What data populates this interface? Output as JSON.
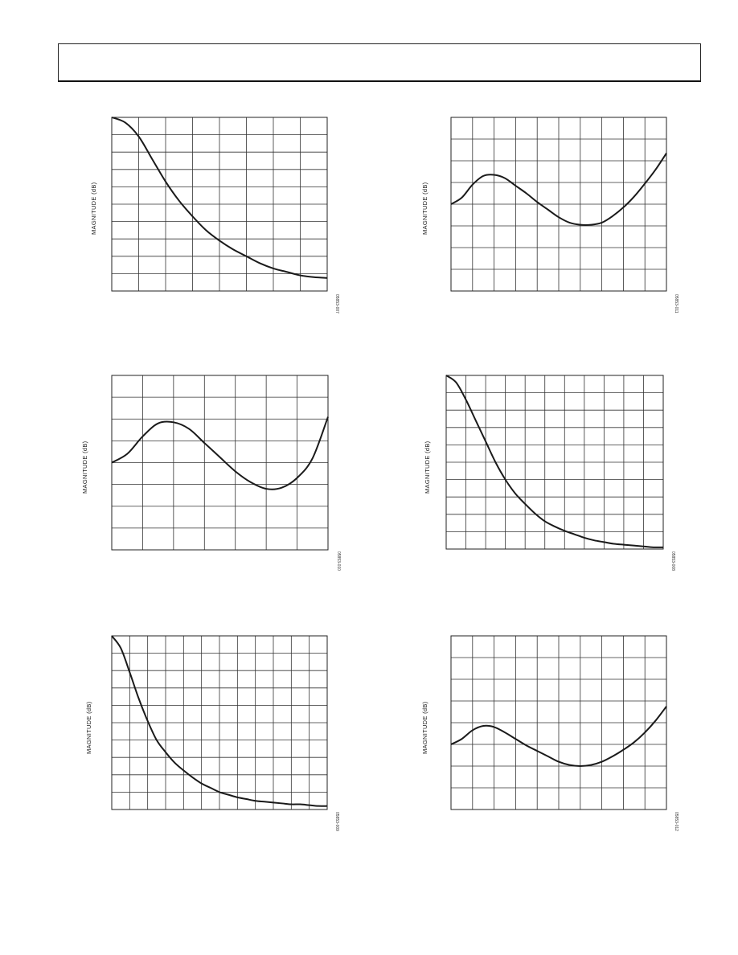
{
  "chart_data": [
    {
      "type": "line",
      "ylabel": "MAGNITUDE (dB)",
      "fig_id": "05853-007",
      "gridX": 8,
      "gridY": 10,
      "ylim": [
        0,
        10
      ],
      "x": [
        0,
        0.5,
        1,
        1.5,
        2,
        2.5,
        3,
        3.5,
        4,
        4.5,
        5,
        5.5,
        6,
        6.5,
        7,
        7.5,
        8
      ],
      "values": [
        10,
        9.7,
        8.9,
        7.6,
        6.3,
        5.2,
        4.3,
        3.5,
        2.9,
        2.4,
        2.0,
        1.6,
        1.3,
        1.1,
        0.9,
        0.8,
        0.75
      ]
    },
    {
      "type": "line",
      "ylabel": "MAGNITUDE (dB)",
      "fig_id": "05853-011",
      "gridX": 10,
      "gridY": 8,
      "ylim": [
        0,
        8
      ],
      "x": [
        0,
        0.5,
        1,
        1.5,
        2,
        2.5,
        3,
        3.5,
        4,
        4.5,
        5,
        5.5,
        6,
        6.5,
        7,
        7.5,
        8,
        8.5,
        9,
        9.5,
        10
      ],
      "values": [
        4.0,
        4.3,
        4.9,
        5.3,
        5.35,
        5.2,
        4.85,
        4.5,
        4.1,
        3.75,
        3.4,
        3.15,
        3.05,
        3.05,
        3.15,
        3.45,
        3.85,
        4.35,
        4.95,
        5.6,
        6.35
      ]
    },
    {
      "type": "line",
      "ylabel": "MAGNITUDE (dB)",
      "fig_id": "05853-010",
      "gridX": 7,
      "gridY": 8,
      "ylim": [
        0,
        8
      ],
      "x": [
        0,
        0.5,
        1,
        1.5,
        2,
        2.5,
        3,
        3.5,
        4,
        4.5,
        5,
        5.5,
        6,
        6.5,
        7
      ],
      "values": [
        4.0,
        4.4,
        5.2,
        5.8,
        5.85,
        5.55,
        4.9,
        4.25,
        3.6,
        3.1,
        2.8,
        2.85,
        3.3,
        4.2,
        6.1
      ]
    },
    {
      "type": "line",
      "ylabel": "MAGNITUDE (dB)",
      "fig_id": "05853-008",
      "gridX": 11,
      "gridY": 10,
      "ylim": [
        0,
        10
      ],
      "x": [
        0,
        0.5,
        1,
        1.5,
        2,
        2.5,
        3,
        3.5,
        4,
        4.5,
        5,
        5.5,
        6,
        6.5,
        7,
        7.5,
        8,
        8.5,
        9,
        9.5,
        10,
        10.5,
        11
      ],
      "values": [
        10,
        9.6,
        8.6,
        7.4,
        6.2,
        5.0,
        4.0,
        3.2,
        2.6,
        2.05,
        1.6,
        1.3,
        1.05,
        0.85,
        0.65,
        0.5,
        0.4,
        0.3,
        0.25,
        0.2,
        0.15,
        0.1,
        0.1
      ]
    },
    {
      "type": "line",
      "ylabel": "MAGNITUDE (dB)",
      "fig_id": "05853-009",
      "gridX": 12,
      "gridY": 10,
      "ylim": [
        0,
        10
      ],
      "x": [
        0,
        0.5,
        1,
        1.5,
        2,
        2.5,
        3,
        3.5,
        4,
        4.5,
        5,
        5.5,
        6,
        6.5,
        7,
        7.5,
        8,
        8.5,
        9,
        9.5,
        10,
        10.5,
        11,
        11.5,
        12
      ],
      "values": [
        10,
        9.3,
        7.9,
        6.4,
        5.1,
        4.0,
        3.3,
        2.7,
        2.25,
        1.85,
        1.5,
        1.25,
        1.0,
        0.85,
        0.7,
        0.6,
        0.5,
        0.45,
        0.4,
        0.35,
        0.3,
        0.3,
        0.25,
        0.2,
        0.2
      ]
    },
    {
      "type": "line",
      "ylabel": "MAGNITUDE (dB)",
      "fig_id": "05853-012",
      "gridX": 10,
      "gridY": 8,
      "ylim": [
        0,
        8
      ],
      "x": [
        0,
        0.5,
        1,
        1.5,
        2,
        2.5,
        3,
        3.5,
        4,
        4.5,
        5,
        5.5,
        6,
        6.5,
        7,
        7.5,
        8,
        8.5,
        9,
        9.5,
        10
      ],
      "values": [
        3.0,
        3.25,
        3.65,
        3.85,
        3.8,
        3.55,
        3.25,
        2.95,
        2.7,
        2.45,
        2.2,
        2.05,
        2.0,
        2.05,
        2.2,
        2.45,
        2.75,
        3.1,
        3.55,
        4.1,
        4.75
      ]
    }
  ]
}
